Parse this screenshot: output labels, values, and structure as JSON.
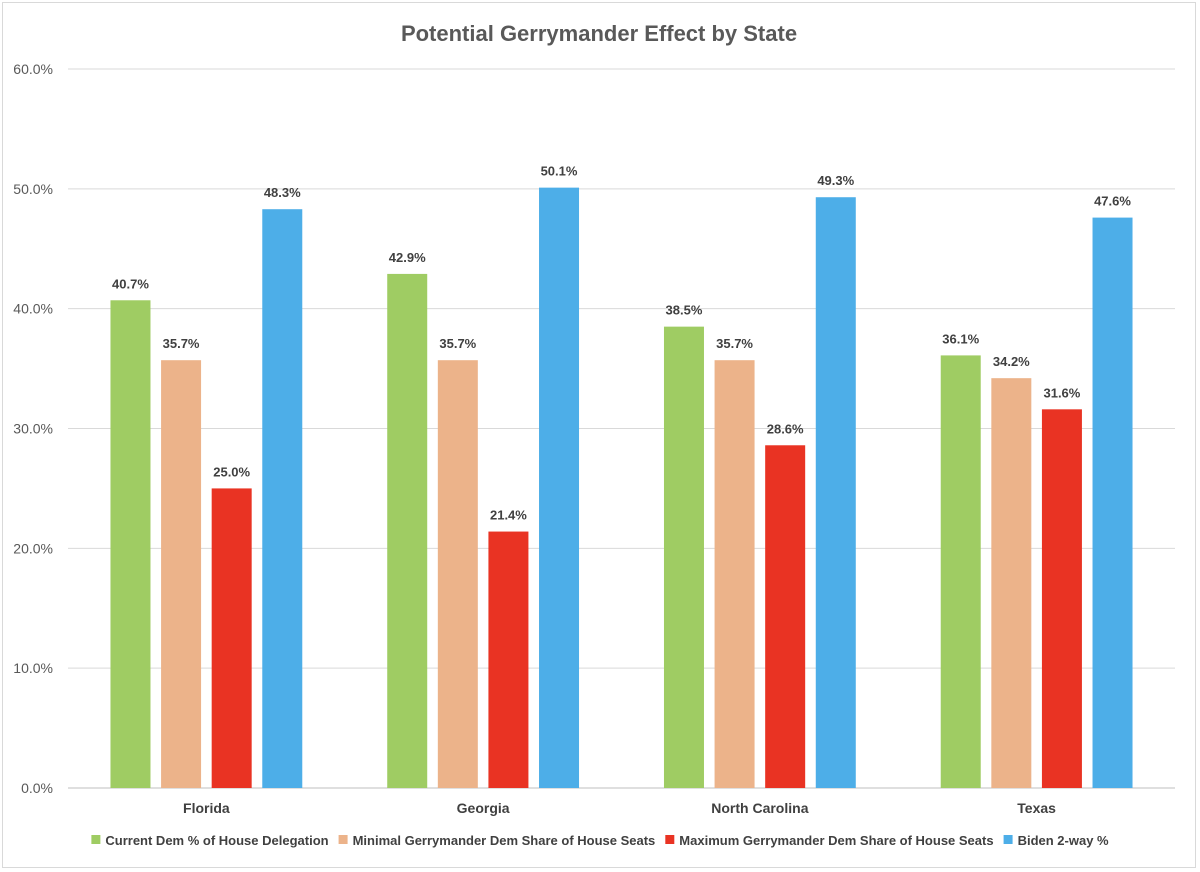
{
  "chart_data": {
    "type": "bar",
    "title": "Potential Gerrymander Effect by State",
    "xlabel": "",
    "ylabel": "",
    "categories": [
      "Florida",
      "Georgia",
      "North Carolina",
      "Texas"
    ],
    "ylim": [
      0,
      60
    ],
    "yticks": [
      "0.0%",
      "10.0%",
      "20.0%",
      "30.0%",
      "40.0%",
      "50.0%",
      "60.0%"
    ],
    "grid": true,
    "legend_position": "bottom",
    "series": [
      {
        "name": "Current Dem % of House Delegation",
        "color": "#9fcc63",
        "values": [
          40.7,
          42.9,
          38.5,
          36.1
        ],
        "labels": [
          "40.7%",
          "42.9%",
          "38.5%",
          "36.1%"
        ]
      },
      {
        "name": "Minimal Gerrymander Dem Share of House Seats",
        "color": "#ecb38a",
        "values": [
          35.7,
          35.7,
          35.7,
          34.2
        ],
        "labels": [
          "35.7%",
          "35.7%",
          "35.7%",
          "34.2%"
        ]
      },
      {
        "name": "Maximum Gerrymander Dem Share of House Seats",
        "color": "#e93323",
        "values": [
          25.0,
          21.4,
          28.6,
          31.6
        ],
        "labels": [
          "25.0%",
          "21.4%",
          "28.6%",
          "31.6%"
        ]
      },
      {
        "name": "Biden 2-way %",
        "color": "#4daee8",
        "values": [
          48.3,
          50.1,
          49.3,
          47.6
        ],
        "labels": [
          "48.3%",
          "50.1%",
          "49.3%",
          "47.6%"
        ]
      }
    ]
  }
}
